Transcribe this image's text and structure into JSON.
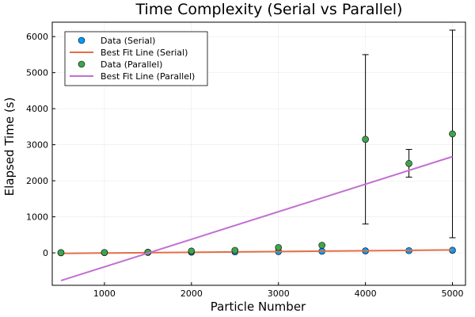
{
  "chart_data": {
    "type": "scatter",
    "title": "Time Complexity (Serial vs Parallel)",
    "xlabel": "Particle Number",
    "ylabel": "Elapsed Time (s)",
    "xlim": [
      400,
      5150
    ],
    "ylim": [
      -900,
      6400
    ],
    "xticks": [
      1000,
      2000,
      3000,
      4000,
      5000
    ],
    "yticks": [
      0,
      1000,
      2000,
      3000,
      4000,
      5000,
      6000
    ],
    "grid": true,
    "legend_position": "top-left",
    "series": [
      {
        "name": "Data (Serial)",
        "kind": "scatter",
        "color": "#009AFA",
        "x": [
          500,
          1000,
          1500,
          2000,
          2500,
          3000,
          3500,
          4000,
          4500,
          5000
        ],
        "y": [
          3,
          8,
          14,
          20,
          28,
          36,
          45,
          55,
          62,
          72
        ]
      },
      {
        "name": "Best Fit Line (Serial)",
        "kind": "line",
        "color": "#E26F46",
        "x": [
          500,
          5000
        ],
        "y": [
          -15,
          80
        ]
      },
      {
        "name": "Data (Parallel)",
        "kind": "scatter",
        "color": "#3EA44E",
        "x": [
          500,
          1000,
          1500,
          2000,
          2500,
          3000,
          3500,
          4000,
          4500,
          5000
        ],
        "y": [
          5,
          10,
          20,
          50,
          70,
          150,
          210,
          3150,
          2480,
          3300
        ],
        "yerr_low": [
          0,
          0,
          0,
          0,
          0,
          0,
          0,
          800,
          2100,
          420
        ],
        "yerr_high": [
          0,
          0,
          0,
          0,
          0,
          0,
          0,
          5500,
          2870,
          6180
        ]
      },
      {
        "name": "Best Fit Line (Parallel)",
        "kind": "line",
        "color": "#C271D2",
        "x": [
          500,
          5000
        ],
        "y": [
          -770,
          2670
        ]
      }
    ]
  }
}
